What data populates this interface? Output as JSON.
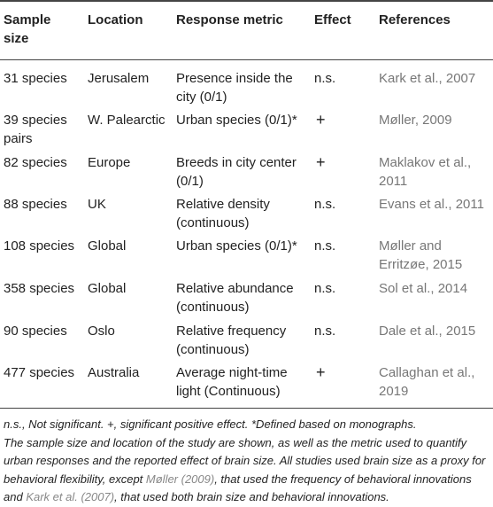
{
  "table": {
    "headers": {
      "sample_size": "Sample\nsize",
      "location": "Location",
      "response_metric": "Response metric",
      "effect": "Effect",
      "references": "References"
    },
    "rows": [
      {
        "sample_size": "31 species",
        "location": "Jerusalem",
        "metric": "Presence inside the\ncity (0/1)",
        "effect": "n.s.",
        "reference": "Kark et al., 2007"
      },
      {
        "sample_size": "39 species\npairs",
        "location": "W. Palearctic",
        "metric": "Urban species (0/1)*",
        "effect": "+",
        "reference": "Møller, 2009"
      },
      {
        "sample_size": "82 species",
        "location": "Europe",
        "metric": "Breeds in city center\n(0/1)",
        "effect": "+",
        "reference": "Maklakov et al.,\n2011"
      },
      {
        "sample_size": "88 species",
        "location": "UK",
        "metric": "Relative density\n(continuous)",
        "effect": "n.s.",
        "reference": "Evans et al., 2011"
      },
      {
        "sample_size": "108 species",
        "location": "Global",
        "metric": "Urban species (0/1)*",
        "effect": "n.s.",
        "reference": "Møller and\nErritzøe, 2015"
      },
      {
        "sample_size": "358 species",
        "location": "Global",
        "metric": "Relative abundance\n(continuous)",
        "effect": "n.s.",
        "reference": "Sol et al., 2014"
      },
      {
        "sample_size": "90 species",
        "location": "Oslo",
        "metric": "Relative frequency\n(continuous)",
        "effect": "n.s.",
        "reference": "Dale et al., 2015"
      },
      {
        "sample_size": "477 species",
        "location": "Australia",
        "metric": "Average night-time\nlight (Continuous)",
        "effect": "+",
        "reference": "Callaghan et al.,\n2019"
      }
    ]
  },
  "footnote": {
    "p1": "n.s., Not significant. +, significant positive effect. *Defined based on monographs.",
    "p2a": "The sample size and location of the study are shown, as well as the metric used to quantify urban responses and the reported effect of brain size. All studies used brain size as a proxy for behavioral flexibility, except ",
    "link1": "Møller (2009)",
    "p2b": ", that used the frequency of behavioral innovations and ",
    "link2": "Kark et al. (2007)",
    "p2c": ", that used both brain size and behavioral innovations."
  }
}
